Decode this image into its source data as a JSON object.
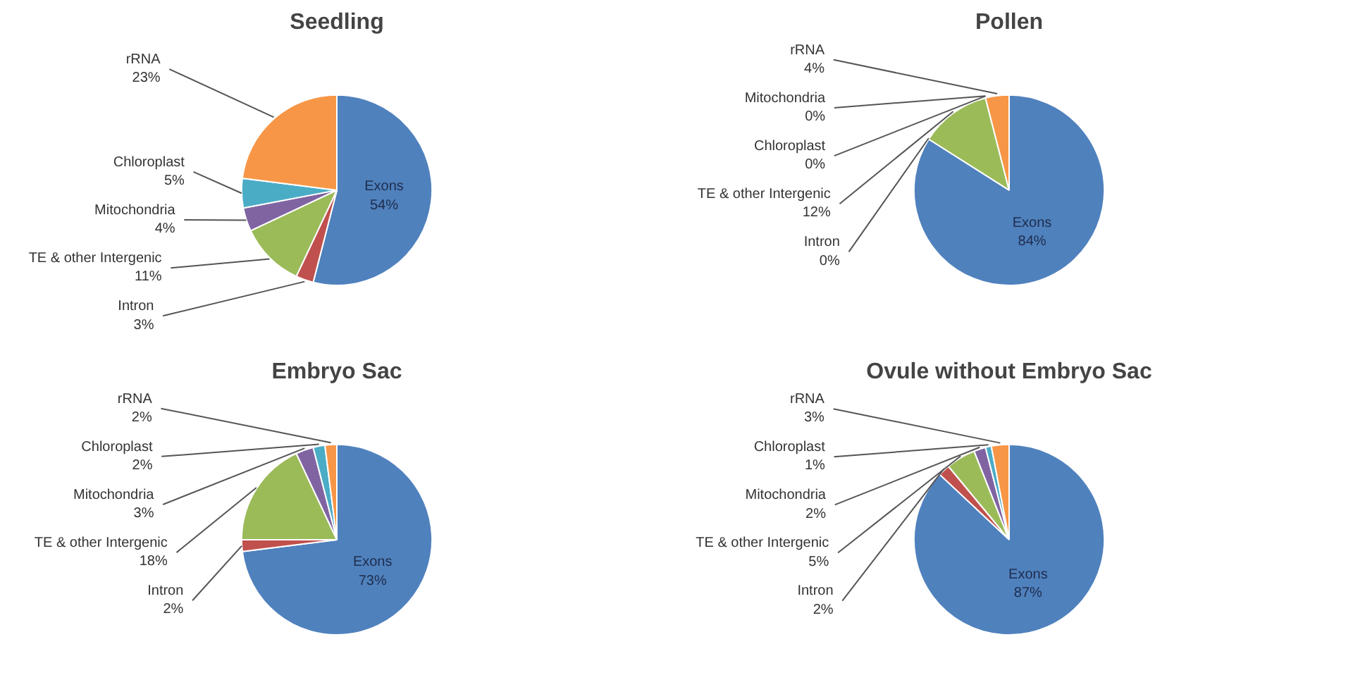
{
  "chart_data": [
    {
      "type": "pie",
      "title": "Seedling",
      "categories": [
        "Exons",
        "Intron",
        "TE & other Intergenic",
        "Mitochondria",
        "Chloroplast",
        "rRNA"
      ],
      "values": [
        54,
        3,
        11,
        4,
        5,
        23
      ],
      "value_labels": [
        "54%",
        "3%",
        "11%",
        "4%",
        "5%",
        "23%"
      ],
      "colors": [
        "#4f81bd",
        "#c0504d",
        "#9bbb59",
        "#8064a2",
        "#4bacc6",
        "#f79646"
      ]
    },
    {
      "type": "pie",
      "title": "Pollen",
      "categories": [
        "Exons",
        "Intron",
        "TE & other Intergenic",
        "Mitochondria",
        "Chloroplast",
        "rRNA"
      ],
      "values": [
        84,
        0,
        12,
        0,
        0,
        4
      ],
      "value_labels": [
        "84%",
        "0%",
        "12%",
        "0%",
        "0%",
        "4%"
      ],
      "colors": [
        "#4f81bd",
        "#c0504d",
        "#9bbb59",
        "#8064a2",
        "#4bacc6",
        "#f79646"
      ]
    },
    {
      "type": "pie",
      "title": "Embryo Sac",
      "categories": [
        "Exons",
        "Intron",
        "TE & other Intergenic",
        "Mitochondria",
        "Chloroplast",
        "rRNA"
      ],
      "values": [
        73,
        2,
        18,
        3,
        2,
        2
      ],
      "value_labels": [
        "73%",
        "2%",
        "18%",
        "3%",
        "2%",
        "2%"
      ],
      "colors": [
        "#4f81bd",
        "#c0504d",
        "#9bbb59",
        "#8064a2",
        "#4bacc6",
        "#f79646"
      ]
    },
    {
      "type": "pie",
      "title": "Ovule without Embryo Sac",
      "categories": [
        "Exons",
        "Intron",
        "TE & other Intergenic",
        "Mitochondria",
        "Chloroplast",
        "rRNA"
      ],
      "values": [
        87,
        2,
        5,
        2,
        1,
        3
      ],
      "value_labels": [
        "87%",
        "2%",
        "5%",
        "2%",
        "1%",
        "3%"
      ],
      "colors": [
        "#4f81bd",
        "#c0504d",
        "#9bbb59",
        "#8064a2",
        "#4bacc6",
        "#f79646"
      ]
    }
  ]
}
